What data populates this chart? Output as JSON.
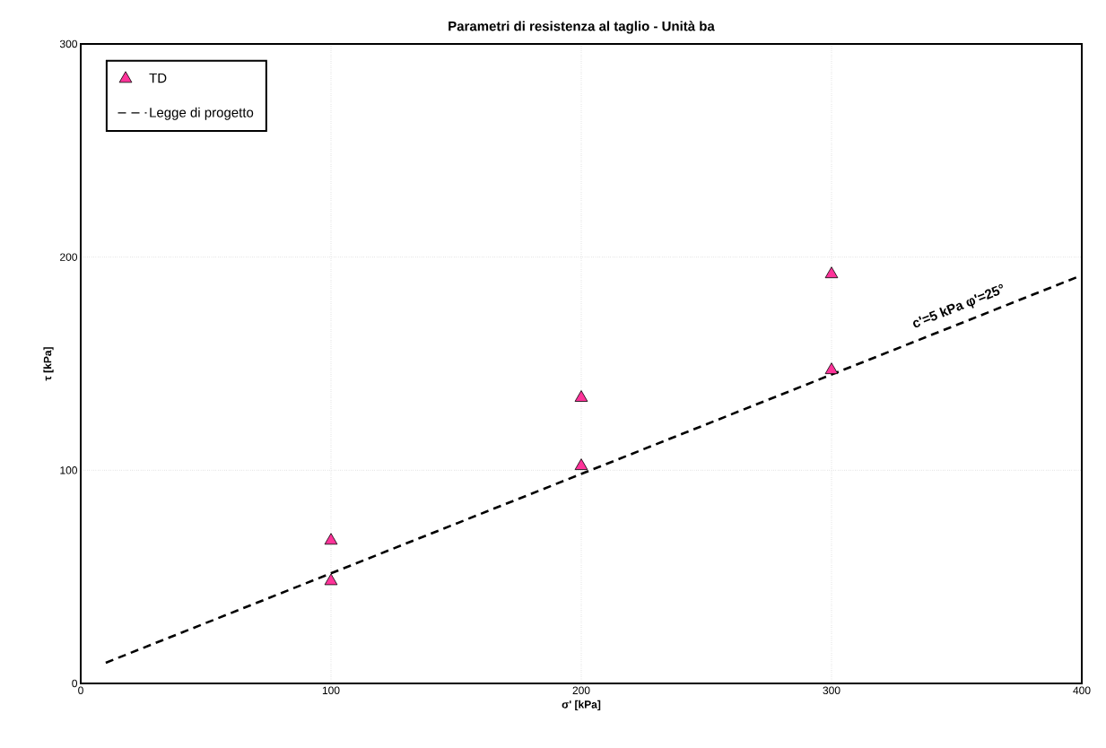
{
  "chart_data": {
    "type": "scatter",
    "title": "Parametri di resistenza al taglio - Unità ba",
    "xlabel": "σ' [kPa]",
    "ylabel": "τ [kPa]",
    "xlim": [
      0,
      400
    ],
    "ylim": [
      0,
      300
    ],
    "xticks": [
      0,
      100,
      200,
      300,
      400
    ],
    "yticks": [
      0,
      100,
      200,
      300
    ],
    "grid": true,
    "legend": "top left",
    "series": [
      {
        "name": "TD",
        "marker": "triangle",
        "color": "#ff3399",
        "x": [
          100,
          100,
          200,
          200,
          300,
          300
        ],
        "values": [
          67,
          48,
          134,
          102,
          192,
          147
        ]
      },
      {
        "name": "Legge di progetto",
        "type": "line",
        "marker": "none",
        "line_style": "dashed",
        "color": "#000000",
        "x": [
          10,
          400
        ],
        "values": [
          9.7,
          191.5
        ]
      }
    ],
    "annotations": [
      "c'=5 kPa φ'=25°"
    ]
  }
}
